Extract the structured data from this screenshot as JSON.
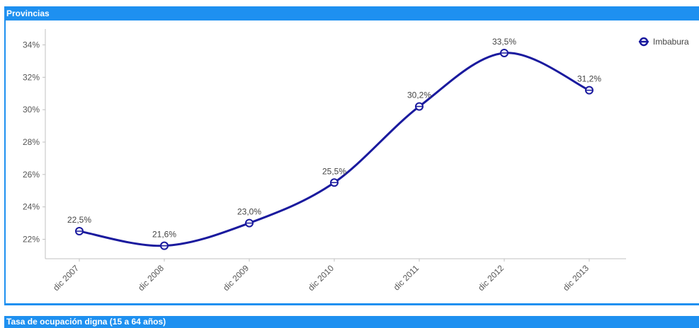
{
  "header": {
    "title": "Provincias"
  },
  "footer": {
    "title": "Tasa de ocupación digna (15 a 64 años)"
  },
  "colors": {
    "header": "#1e90f0",
    "series": "#1a1a9e"
  },
  "chart_data": {
    "type": "line",
    "title": "",
    "xlabel": "",
    "ylabel": "",
    "categories": [
      "dic 2007",
      "dic 2008",
      "dic 2009",
      "dic 2010",
      "dic 2011",
      "dic 2012",
      "dic 2013"
    ],
    "series": [
      {
        "name": "Imbabura",
        "values": [
          22.5,
          21.6,
          23.0,
          25.5,
          30.2,
          33.5,
          31.2
        ],
        "labels": [
          "22,5%",
          "21,6%",
          "23,0%",
          "25,5%",
          "30,2%",
          "33,5%",
          "31,2%"
        ]
      }
    ],
    "yticks": [
      22,
      24,
      26,
      28,
      30,
      32,
      34
    ],
    "ytick_labels": [
      "22%",
      "24%",
      "26%",
      "28%",
      "30%",
      "32%",
      "34%"
    ],
    "ylim": [
      21,
      35
    ],
    "grid": false,
    "legend": "top-right",
    "smooth": true
  }
}
